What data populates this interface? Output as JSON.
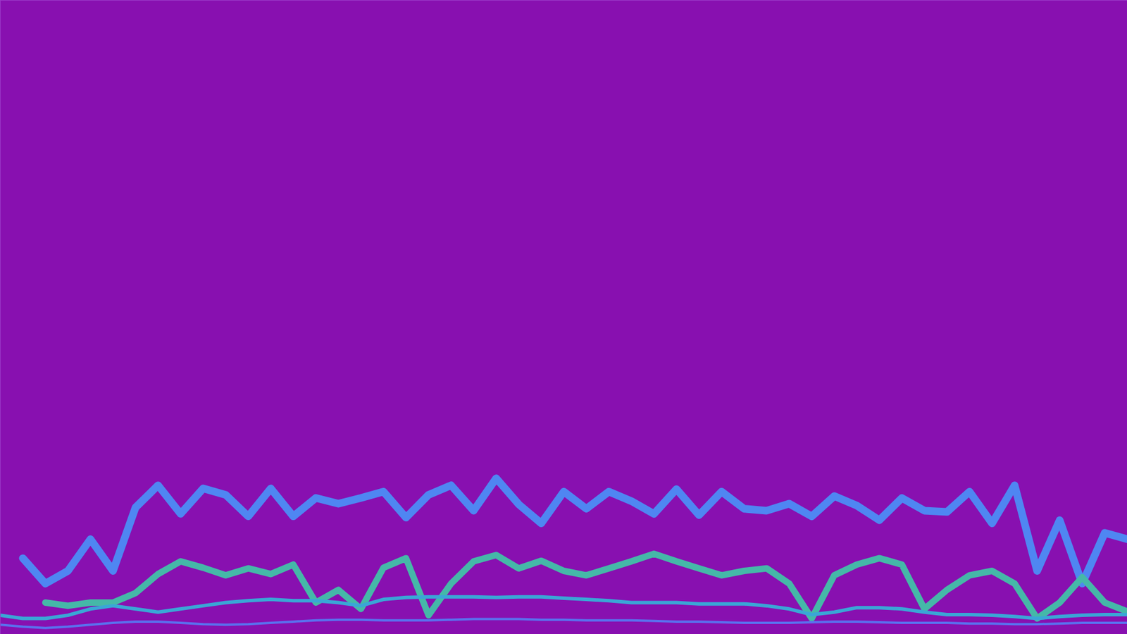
{
  "chart_data": {
    "type": "line",
    "x": [
      0,
      2,
      4,
      6,
      8,
      10,
      12,
      14,
      16,
      18,
      20,
      22,
      24,
      26,
      28,
      30,
      32,
      34,
      36,
      38,
      40,
      42,
      44,
      46,
      48,
      50,
      52,
      54,
      56,
      58,
      60,
      62,
      64,
      66,
      68,
      70,
      72,
      74,
      76,
      78,
      80,
      82,
      84,
      86,
      88,
      90,
      92,
      94,
      96,
      98,
      100
    ],
    "series": [
      {
        "color": "#4f86f2",
        "values": [
          null,
          12,
          8,
          10,
          15,
          10,
          20,
          23.5,
          19,
          23,
          22,
          18.6,
          23,
          18.6,
          21.5,
          20.6,
          21.5,
          22.5,
          18.4,
          22,
          23.5,
          19.5,
          24.6,
          20.5,
          17.5,
          22.5,
          19.8,
          22.5,
          21,
          19,
          22.9,
          18.8,
          22.5,
          19.8,
          19.5,
          20.6,
          18.6,
          21.8,
          20.3,
          18,
          21.5,
          19.5,
          19.3,
          22.5,
          17.5,
          23.5,
          10,
          18,
          8,
          16,
          15
        ]
      },
      {
        "color": "#45b8a8",
        "values": [
          null,
          null,
          5,
          4.5,
          5,
          5,
          6.5,
          9.5,
          11.5,
          10.5,
          9.3,
          10.4,
          9.5,
          11,
          5,
          7,
          4,
          10.5,
          12,
          3,
          8,
          11.5,
          12.5,
          10.4,
          11.6,
          10,
          9.3,
          10.4,
          11.5,
          12.7,
          11.5,
          10.4,
          9.3,
          10,
          10.4,
          8,
          2.5,
          9.3,
          11,
          12,
          11,
          4,
          7,
          9.3,
          10,
          8,
          2.5,
          5,
          9,
          5,
          3.6
        ]
      },
      {
        "color": "#3aa6d6",
        "values": [
          3,
          2.5,
          2.5,
          3,
          4,
          4.5,
          4,
          3.5,
          4,
          4.5,
          5,
          5.3,
          5.5,
          5.3,
          5.3,
          5,
          4.5,
          5.5,
          5.8,
          5.9,
          5.9,
          5.9,
          5.8,
          5.9,
          5.9,
          5.7,
          5.5,
          5.3,
          5,
          5,
          5,
          4.8,
          4.8,
          4.8,
          4.5,
          4,
          3.1,
          3.5,
          4.2,
          4.2,
          4,
          3.5,
          3.1,
          3.1,
          3,
          2.8,
          2.5,
          2.8,
          3,
          3.1,
          3.1
        ]
      },
      {
        "color": "#5a70ee",
        "values": [
          1.5,
          1.2,
          1,
          1.2,
          1.5,
          1.8,
          2,
          2,
          1.8,
          1.6,
          1.5,
          1.6,
          1.8,
          2,
          2.2,
          2.3,
          2.3,
          2.2,
          2.2,
          2.2,
          2.3,
          2.4,
          2.4,
          2.4,
          2.3,
          2.3,
          2.2,
          2.2,
          2.2,
          2.1,
          2,
          2,
          1.9,
          1.8,
          1.8,
          1.8,
          1.9,
          2,
          2,
          1.9,
          1.8,
          1.8,
          1.8,
          1.7,
          1.7,
          1.6,
          1.6,
          1.7,
          1.8,
          1.8,
          1.8
        ]
      }
    ],
    "xlim": [
      0,
      100
    ],
    "ylim": [
      0,
      100
    ],
    "xticks": [],
    "yticks": [],
    "tick_labels": false,
    "grid": false
  }
}
